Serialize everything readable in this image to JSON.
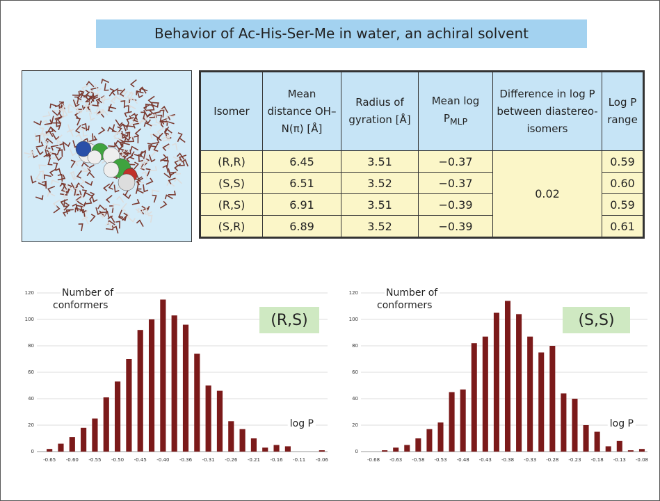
{
  "title": "Behavior of Ac-His-Ser-Me in water, an achiral solvent",
  "table": {
    "header": [
      "Isomer",
      "Mean distance OH–N(π) [Å]",
      "Radius of gyration [Å]",
      {
        "text": "Mean log P",
        "sub": "MLP"
      },
      "Difference in log P between diastereo-isomers",
      "Log P range"
    ],
    "rows": [
      [
        "(R,R)",
        "6.45",
        "3.51",
        "−0.37",
        "0.59"
      ],
      [
        "(S,S)",
        "6.51",
        "3.52",
        "−0.37",
        "0.60"
      ],
      [
        "(R,S)",
        "6.91",
        "3.51",
        "−0.39",
        "0.59"
      ],
      [
        "(S,R)",
        "6.89",
        "3.52",
        "−0.39",
        "0.61"
      ]
    ],
    "difference": "0.02"
  },
  "chart_data": [
    {
      "type": "bar",
      "label": "(R,S)",
      "ylabel": [
        "Number of",
        "conformers"
      ],
      "xlabel": "log P",
      "color": "#7b1a1a",
      "categories": [
        "-0.65",
        null,
        "-0.60",
        null,
        "-0.55",
        null,
        "-0.50",
        null,
        "-0.45",
        null,
        "-0.40",
        null,
        "-0.36",
        null,
        "-0.31",
        null,
        "-0.26",
        null,
        "-0.21",
        null,
        "-0.16",
        null,
        "-0.11",
        null,
        "-0.06"
      ],
      "values": [
        2,
        6,
        11,
        18,
        25,
        41,
        53,
        70,
        92,
        100,
        115,
        103,
        96,
        74,
        50,
        46,
        23,
        17,
        10,
        3,
        5,
        4,
        0,
        0,
        1
      ],
      "ylim": [
        0,
        120
      ],
      "yticks": [
        0,
        20,
        40,
        60,
        80,
        100,
        120
      ],
      "grid": true
    },
    {
      "type": "bar",
      "label": "(S,S)",
      "ylabel": [
        "Number of",
        "conformers"
      ],
      "xlabel": "log P",
      "color": "#7b1a1a",
      "categories": [
        "-0.68",
        null,
        "-0.63",
        null,
        "-0.58",
        null,
        "-0.53",
        null,
        "-0.48",
        null,
        "-0.43",
        null,
        "-0.38",
        null,
        "-0.33",
        null,
        "-0.28",
        null,
        "-0.23",
        null,
        "-0.18",
        null,
        "-0.13",
        null,
        "-0.08"
      ],
      "values": [
        0,
        1,
        3,
        5,
        10,
        17,
        22,
        45,
        47,
        82,
        87,
        105,
        114,
        104,
        87,
        75,
        80,
        44,
        40,
        20,
        15,
        4,
        8,
        1,
        2
      ],
      "ylim": [
        0,
        120
      ],
      "yticks": [
        0,
        20,
        40,
        60,
        80,
        100,
        120
      ],
      "grid": true
    }
  ]
}
